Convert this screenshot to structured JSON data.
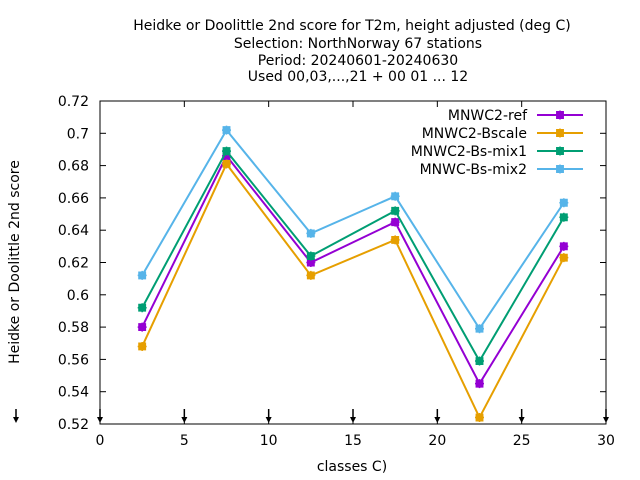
{
  "chart_data": {
    "type": "line",
    "title_lines": [
      "Heidke or Doolittle 2nd score  for T2m, height adjusted (deg C)",
      "Selection: NorthNorway     67 stations",
      "Period: 20240601-20240630",
      "Used 00,03,...,21 + 00 01 ... 12"
    ],
    "xlabel": "classes C)",
    "ylabel": "Heidke or Doolittle 2nd score",
    "xlim": [
      0,
      30
    ],
    "ylim": [
      0.52,
      0.72
    ],
    "xticks": [
      0,
      5,
      10,
      15,
      20,
      25,
      30
    ],
    "yticks": [
      0.52,
      0.54,
      0.56,
      0.58,
      0.6,
      0.62,
      0.64,
      0.66,
      0.68,
      0.7,
      0.72
    ],
    "xtick_labels": [
      "0",
      "5",
      "10",
      "15",
      "20",
      "25",
      "30"
    ],
    "ytick_labels": [
      "0.52",
      "0.54",
      "0.56",
      "0.58",
      "0.6",
      "0.62",
      "0.64",
      "0.66",
      "0.68",
      "0.7",
      "0.72"
    ],
    "grid": false,
    "legend_position": "top-right",
    "x": [
      2.5,
      7.5,
      12.5,
      17.5,
      22.5,
      27.5
    ],
    "series": [
      {
        "name": "MNWC2-ref",
        "color": "#9400d3",
        "values": [
          0.58,
          0.686,
          0.62,
          0.645,
          0.545,
          0.63
        ]
      },
      {
        "name": "MNWC2-Bscale",
        "color": "#e69f00",
        "values": [
          0.568,
          0.681,
          0.612,
          0.634,
          0.524,
          0.623
        ]
      },
      {
        "name": "MNWC2-Bs-mix1",
        "color": "#009e73",
        "values": [
          0.592,
          0.689,
          0.624,
          0.652,
          0.559,
          0.648
        ]
      },
      {
        "name": "MNWC-Bs-mix2",
        "color": "#56b4e9",
        "values": [
          0.612,
          0.702,
          0.638,
          0.661,
          0.579,
          0.657
        ]
      }
    ]
  }
}
